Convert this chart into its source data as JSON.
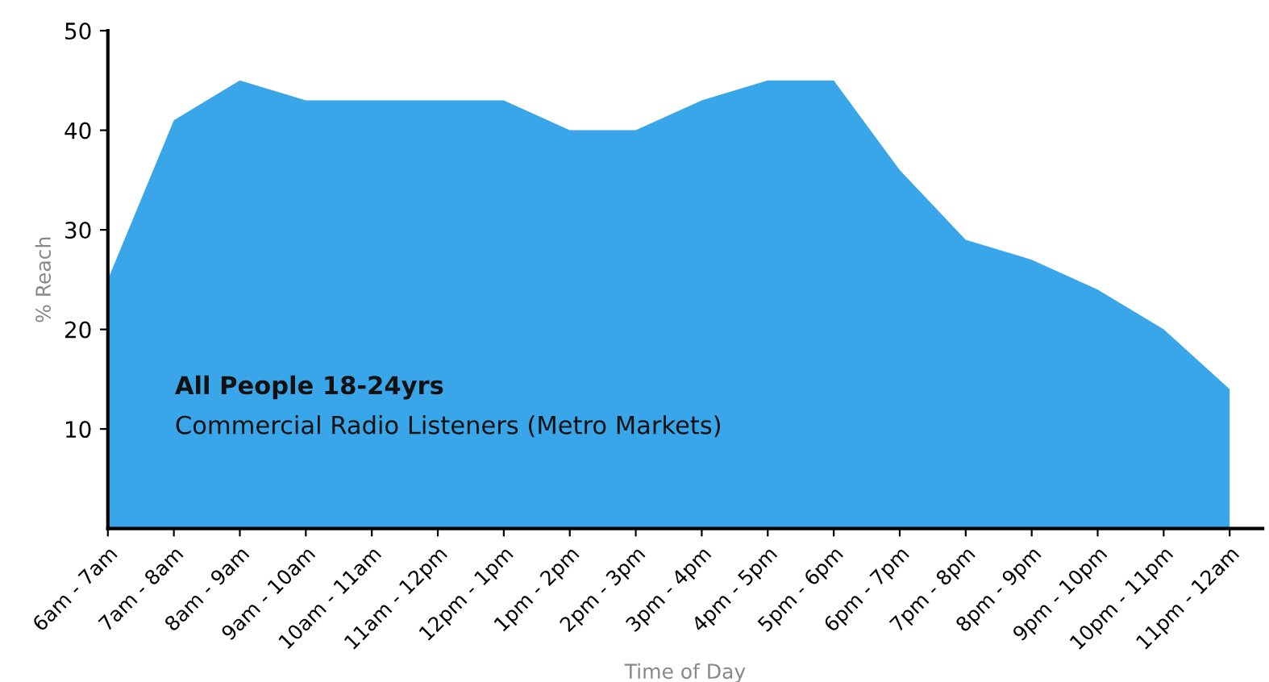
{
  "chart_data": {
    "type": "area",
    "xlabel": "Time of Day",
    "ylabel": "% Reach",
    "categories": [
      "6am - 7am",
      "7am - 8am",
      "8am - 9am",
      "9am - 10am",
      "10am - 11am",
      "11am - 12pm",
      "12pm - 1pm",
      "1pm - 2pm",
      "2pm - 3pm",
      "3pm - 4pm",
      "4pm - 5pm",
      "5pm - 6pm",
      "6pm - 7pm",
      "7pm - 8pm",
      "8pm - 9pm",
      "9pm - 10pm",
      "10pm - 11pm",
      "11pm - 12am"
    ],
    "series": [
      {
        "color": "#38a6e8",
        "values": [
          25,
          41,
          45,
          43,
          43,
          43,
          43,
          40,
          40,
          43,
          45,
          45,
          36,
          29,
          27,
          24,
          20,
          14
        ]
      }
    ],
    "ylim": [
      0,
      50
    ],
    "yticks": [
      10,
      20,
      30,
      40,
      50
    ],
    "grid": false,
    "legend": false,
    "annotations": [
      "All People 18-24yrs",
      "Commercial Radio Listeners (Metro Markets)"
    ]
  }
}
